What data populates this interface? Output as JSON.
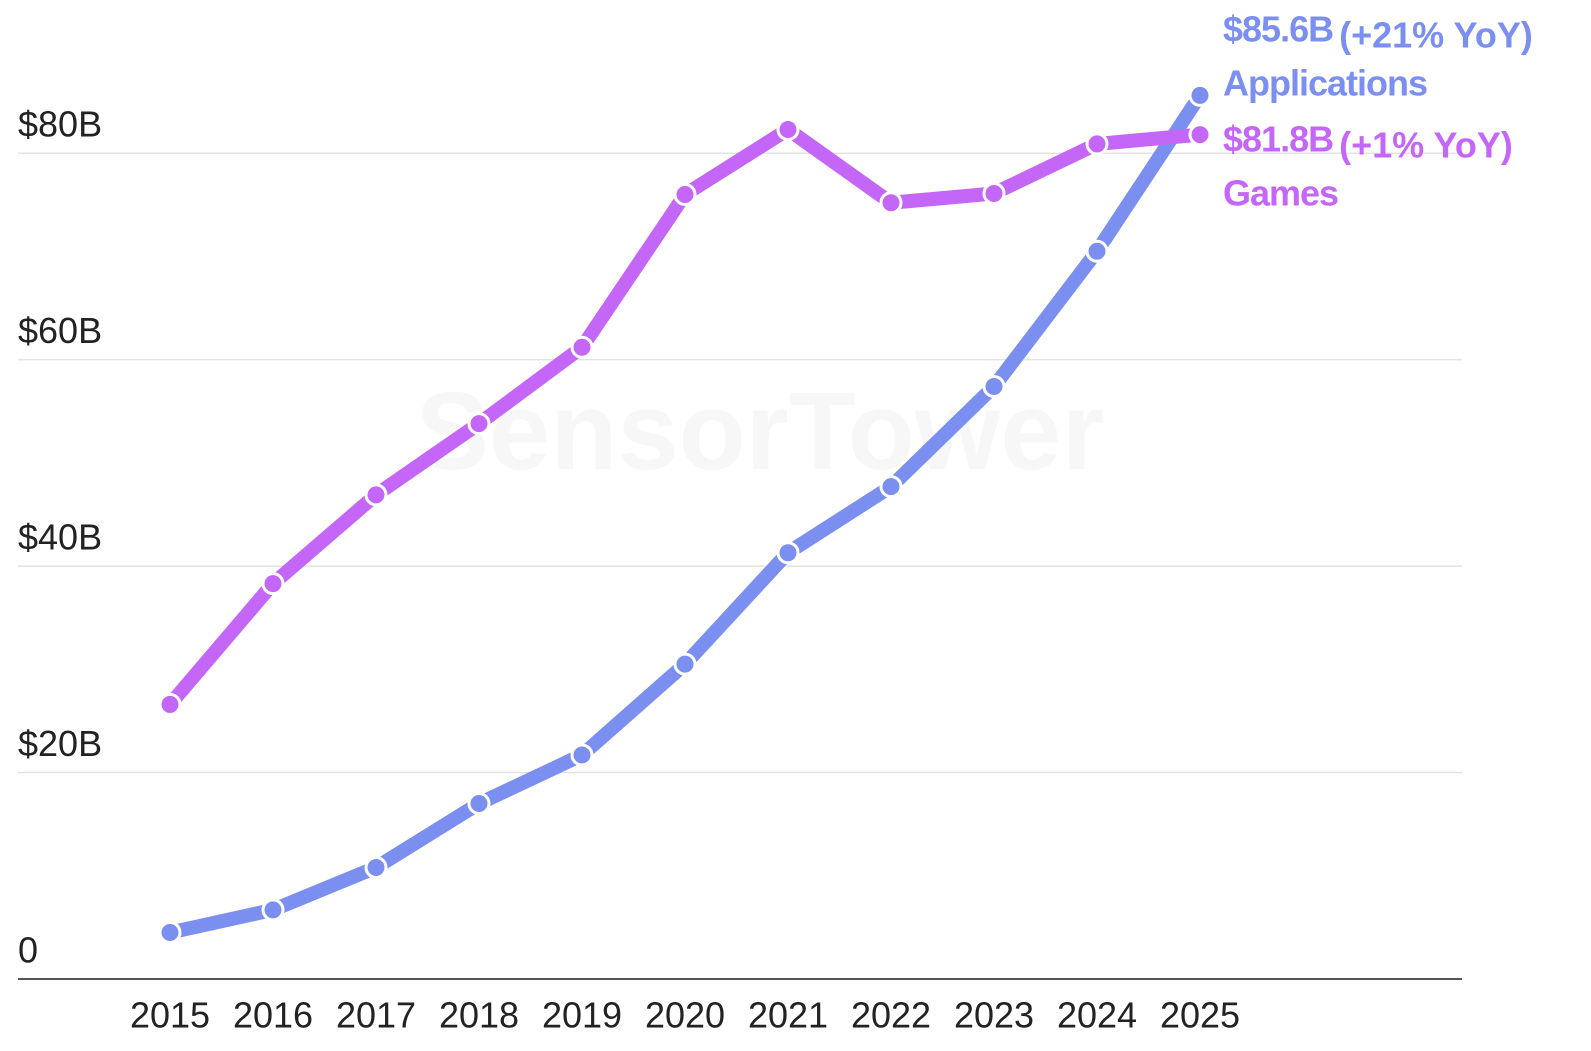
{
  "chart_data": {
    "type": "line",
    "watermark": "SensorTower",
    "categories": [
      "2015",
      "2016",
      "2017",
      "2018",
      "2019",
      "2020",
      "2021",
      "2022",
      "2023",
      "2024",
      "2025"
    ],
    "series": [
      {
        "name": "Applications",
        "color": "#7b8ff0",
        "values": [
          4.5,
          6.7,
          10.8,
          17.0,
          21.7,
          30.5,
          41.3,
          47.7,
          57.4,
          70.5,
          85.6
        ],
        "value_labels": [
          null,
          null,
          null,
          null,
          null,
          null,
          null,
          null,
          null,
          null,
          "$85.6B"
        ],
        "annotation": "(+21% YoY)"
      },
      {
        "name": "Games",
        "color": "#c466f7",
        "values": [
          26.6,
          38.3,
          46.9,
          53.8,
          61.2,
          76.0,
          82.3,
          75.2,
          76.1,
          80.9,
          81.8
        ],
        "value_labels": [
          null,
          null,
          null,
          null,
          null,
          null,
          null,
          null,
          null,
          null,
          "$81.8B"
        ],
        "annotation": "(+1% YoY)"
      }
    ],
    "ylim": [
      0,
      90
    ],
    "yticks": [
      0,
      {
        "value": 20,
        "label": "$20B"
      },
      {
        "value": 40,
        "label": "$40B"
      },
      {
        "value": 60,
        "label": "$60B"
      },
      {
        "value": 80,
        "label": "$80B"
      }
    ],
    "grid": true
  }
}
